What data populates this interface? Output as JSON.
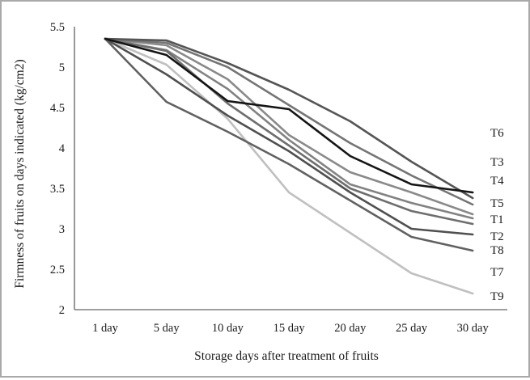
{
  "chart_data": {
    "type": "line",
    "title": "",
    "xlabel": "Storage days after treatment of fruits",
    "ylabel": "Firmness of fruits on days indicated (kg/cm2)",
    "categories": [
      "1 day",
      "5 day",
      "10 day",
      "15 day",
      "20 day",
      "25 day",
      "30 day"
    ],
    "y_ticks": [
      "2",
      "2.5",
      "3",
      "3.5",
      "4",
      "4.5",
      "5",
      "5.5"
    ],
    "ylim": [
      2,
      5.5
    ],
    "grid": "off",
    "legend_position": "right-of-line-ends",
    "legend_order": [
      "T6",
      "T3",
      "T4",
      "T5",
      "T1",
      "T2",
      "T8",
      "T7",
      "T9"
    ],
    "axis_color": "#7f7f7f",
    "label_color": "#1a1a1a",
    "series": [
      {
        "name": "T1",
        "color": "#828282",
        "values": [
          5.35,
          5.21,
          4.73,
          4.1,
          3.55,
          3.32,
          3.13
        ]
      },
      {
        "name": "T2",
        "color": "#6e6e6e",
        "values": [
          5.35,
          5.2,
          4.55,
          4.03,
          3.5,
          3.22,
          3.06
        ]
      },
      {
        "name": "T3",
        "color": "#555555",
        "values": [
          5.35,
          5.33,
          5.05,
          4.72,
          4.33,
          3.83,
          3.38
        ]
      },
      {
        "name": "T4",
        "color": "#757575",
        "values": [
          5.35,
          5.3,
          5.0,
          4.53,
          4.06,
          3.66,
          3.3
        ]
      },
      {
        "name": "T5",
        "color": "#8a8a8a",
        "values": [
          5.35,
          5.27,
          4.85,
          4.16,
          3.7,
          3.45,
          3.18
        ]
      },
      {
        "name": "T6",
        "color": "#141414",
        "values": [
          5.35,
          5.15,
          4.58,
          4.48,
          3.9,
          3.55,
          3.45
        ]
      },
      {
        "name": "T7",
        "color": "#616161",
        "values": [
          5.35,
          4.57,
          4.2,
          3.8,
          3.35,
          2.9,
          2.73
        ]
      },
      {
        "name": "T8",
        "color": "#4f4f4f",
        "values": [
          5.35,
          4.91,
          4.4,
          3.96,
          3.45,
          3.0,
          2.93
        ]
      },
      {
        "name": "T9",
        "color": "#c0c0c0",
        "values": [
          5.35,
          5.03,
          4.36,
          3.45,
          2.95,
          2.45,
          2.2
        ]
      }
    ]
  }
}
